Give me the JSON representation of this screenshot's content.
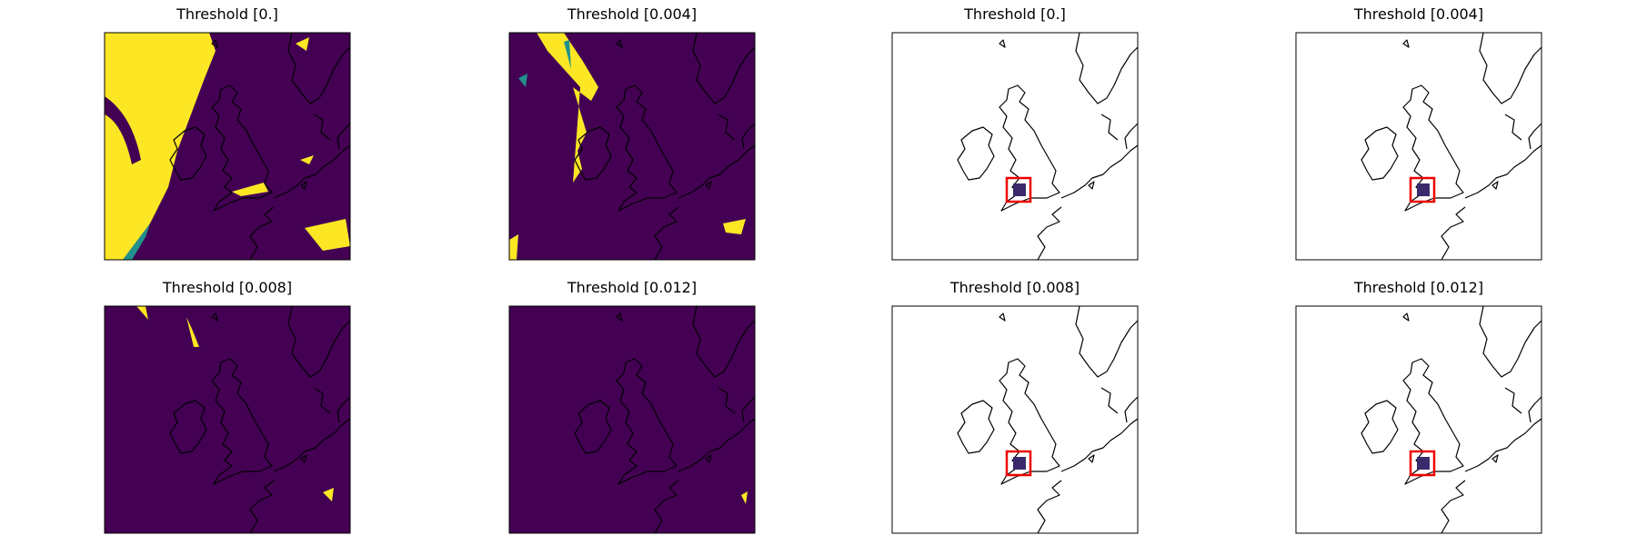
{
  "panels": [
    {
      "title": "Threshold [0.]"
    },
    {
      "title": "Threshold [0.004]"
    },
    {
      "title": "Threshold [0.]"
    },
    {
      "title": "Threshold [0.004]"
    },
    {
      "title": "Threshold [0.008]"
    },
    {
      "title": "Threshold [0.012]"
    },
    {
      "title": "Threshold [0.008]"
    },
    {
      "title": "Threshold [0.012]"
    }
  ]
}
